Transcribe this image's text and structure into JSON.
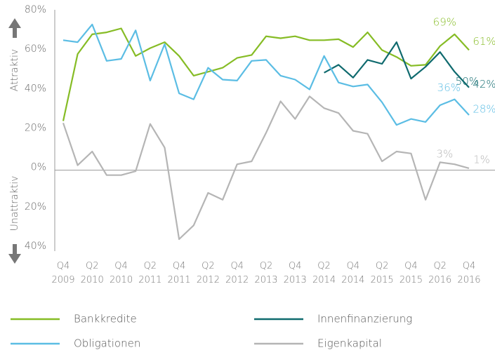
{
  "chart_data": {
    "type": "line",
    "categories": [
      "Q4 2009",
      null,
      "Q2 2010",
      null,
      "Q4 2010",
      null,
      "Q2 2011",
      null,
      "Q4 2011",
      null,
      "Q2 2012",
      null,
      "Q4 2012",
      null,
      "Q2 2013",
      null,
      "Q4 2013",
      null,
      "Q2 2014",
      null,
      "Q4 2014",
      null,
      "Q2 2015",
      null,
      "Q4 2015",
      null,
      "Q2 2016",
      null,
      "Q4 2016"
    ],
    "ylim": [
      -40,
      80
    ],
    "yticks": [
      {
        "value": 80,
        "label": "80%"
      },
      {
        "value": 60,
        "label": "60%"
      },
      {
        "value": 40,
        "label": "40%"
      },
      {
        "value": 20,
        "label": "20%"
      },
      {
        "value": 0,
        "label": "0%"
      },
      {
        "value": -20,
        "label": "20%"
      },
      {
        "value": -40,
        "label": "40%"
      }
    ],
    "y_axis_top_label": "Attraktiv",
    "y_axis_bottom_label": "Unattraktiv",
    "series": [
      {
        "name": "Bankkredite",
        "color": "#86bc25",
        "values": [
          25,
          59,
          69,
          70,
          72,
          58,
          62,
          65,
          58,
          48,
          50,
          52,
          57,
          58.5,
          68,
          67,
          68,
          66,
          66,
          66.5,
          62.5,
          70,
          61,
          57.5,
          53,
          53.5,
          63,
          69,
          61
        ],
        "value_labels": [
          null,
          null,
          null,
          null,
          null,
          null,
          null,
          null,
          null,
          null,
          null,
          null,
          null,
          null,
          null,
          null,
          null,
          null,
          null,
          null,
          null,
          null,
          null,
          null,
          null,
          null,
          null,
          "69%",
          "61%"
        ]
      },
      {
        "name": "Innenfinanzierung",
        "color": "#0f6a6e",
        "values": [
          null,
          null,
          null,
          null,
          null,
          null,
          null,
          null,
          null,
          null,
          null,
          null,
          null,
          null,
          null,
          null,
          null,
          null,
          49.5,
          53.5,
          47,
          56,
          54,
          65,
          46.5,
          52.5,
          60,
          50,
          42
        ],
        "value_labels": [
          null,
          null,
          null,
          null,
          null,
          null,
          null,
          null,
          null,
          null,
          null,
          null,
          null,
          null,
          null,
          null,
          null,
          null,
          null,
          null,
          null,
          null,
          null,
          null,
          null,
          null,
          null,
          "50%",
          "42%"
        ]
      },
      {
        "name": "Obligationen",
        "color": "#5bbde4",
        "values": [
          66,
          65,
          74,
          55.5,
          56.5,
          71,
          45.5,
          64,
          39,
          36,
          52,
          46,
          45.5,
          55.5,
          56,
          48,
          46,
          41,
          58,
          44.5,
          42.5,
          43.5,
          34.5,
          23,
          26,
          24.5,
          33,
          36,
          28
        ],
        "value_labels": [
          null,
          null,
          null,
          null,
          null,
          null,
          null,
          null,
          null,
          null,
          null,
          null,
          null,
          null,
          null,
          null,
          null,
          null,
          null,
          null,
          null,
          null,
          null,
          null,
          null,
          null,
          null,
          "36%",
          "28%"
        ]
      },
      {
        "name": "Eigenkapital",
        "color": "#b5b5b5",
        "values": [
          24,
          2.5,
          9.5,
          -2.5,
          -2.5,
          -0.5,
          23.5,
          11.5,
          -35,
          -28,
          -11.5,
          -15,
          3,
          4.5,
          19,
          35,
          26,
          37.5,
          31.5,
          29,
          20,
          18.5,
          4.5,
          9.5,
          8.5,
          -15,
          4,
          3,
          1
        ],
        "value_labels": [
          null,
          null,
          null,
          null,
          null,
          null,
          null,
          null,
          null,
          null,
          null,
          null,
          null,
          null,
          null,
          null,
          null,
          null,
          null,
          null,
          null,
          null,
          null,
          null,
          null,
          null,
          null,
          "3%",
          "1%"
        ]
      }
    ]
  }
}
